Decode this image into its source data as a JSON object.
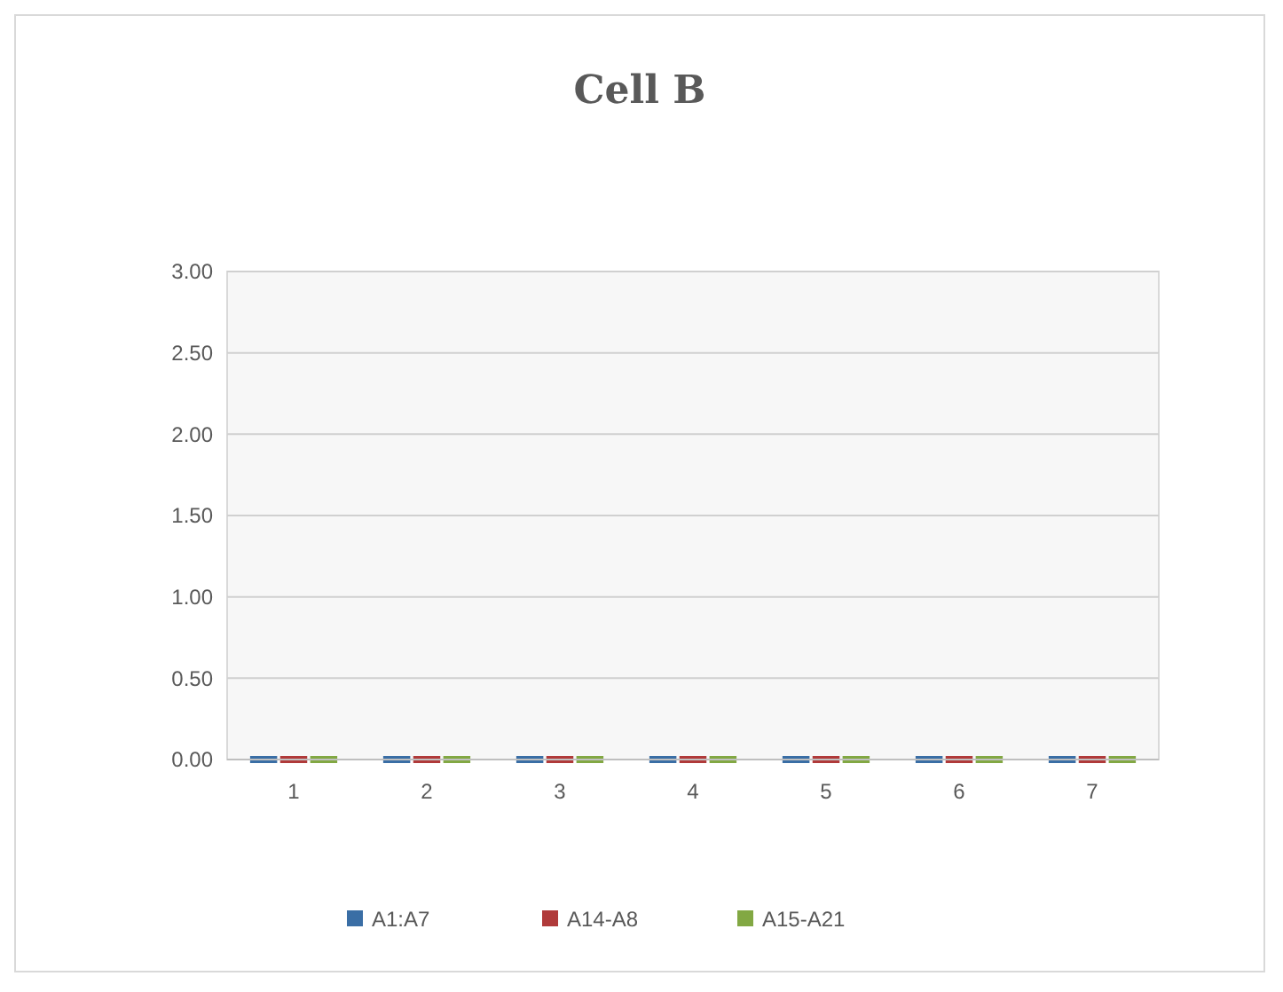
{
  "chart_data": {
    "type": "bar",
    "title": "Cell B",
    "categories": [
      "1",
      "2",
      "3",
      "4",
      "5",
      "6",
      "7"
    ],
    "series": [
      {
        "name": "A1:A7",
        "color": "#3a6ea5",
        "values": [
          0,
          0,
          0,
          0,
          0,
          0,
          0
        ]
      },
      {
        "name": "A14-A8",
        "color": "#b03a3a",
        "values": [
          0,
          0,
          0,
          0,
          0,
          0,
          0
        ]
      },
      {
        "name": "A15-A21",
        "color": "#82a843",
        "values": [
          0,
          0,
          0,
          0,
          0,
          0,
          0
        ]
      }
    ],
    "ylim": [
      0,
      3
    ],
    "yticks": [
      {
        "value": 0,
        "label": "0.00"
      },
      {
        "value": 0.5,
        "label": "0.50"
      },
      {
        "value": 1,
        "label": "1.00"
      },
      {
        "value": 1.5,
        "label": "1.50"
      },
      {
        "value": 2,
        "label": "2.00"
      },
      {
        "value": 2.5,
        "label": "2.50"
      },
      {
        "value": 3,
        "label": "3.00"
      }
    ],
    "grid": "y",
    "legend": "bottom"
  }
}
